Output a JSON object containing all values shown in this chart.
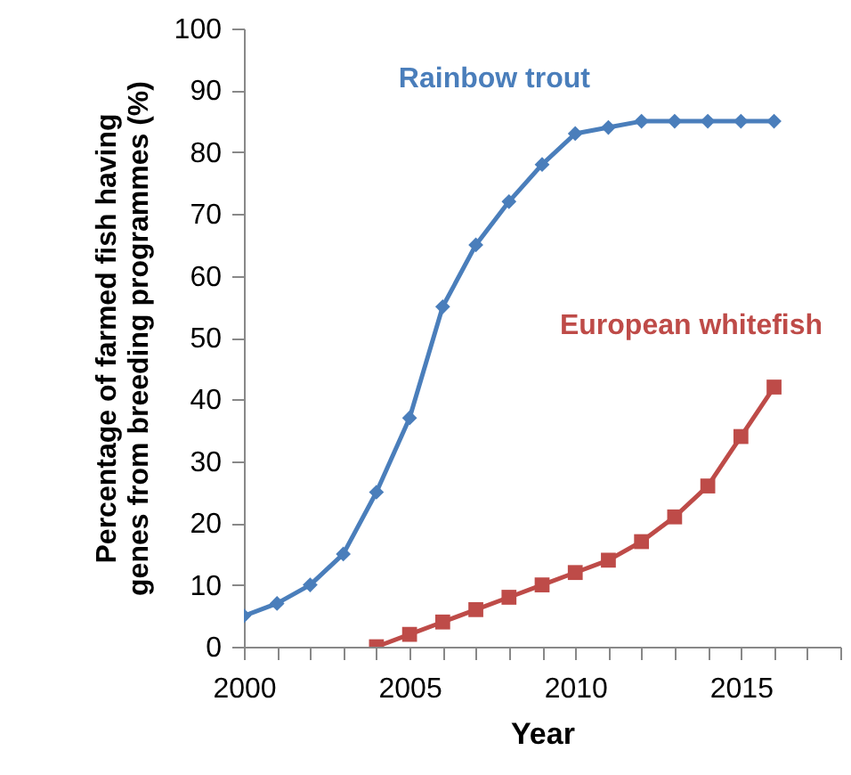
{
  "chart_data": {
    "type": "line",
    "xlabel": "Year",
    "ylabel": "Percentage of farmed fish having genes from breeding programmes (%)",
    "xlim": [
      2000,
      2018
    ],
    "xticks": [
      2000,
      {
        "value": 2001,
        "label": null
      },
      {
        "value": 2002,
        "label": null
      },
      {
        "value": 2003,
        "label": null
      },
      {
        "value": 2004,
        "label": null
      },
      2005,
      {
        "value": 2006,
        "label": null
      },
      {
        "value": 2007,
        "label": null
      },
      {
        "value": 2008,
        "label": null
      },
      {
        "value": 2009,
        "label": null
      },
      2010,
      {
        "value": 2011,
        "label": null
      },
      {
        "value": 2012,
        "label": null
      },
      {
        "value": 2013,
        "label": null
      },
      {
        "value": 2014,
        "label": null
      },
      2015,
      {
        "value": 2016,
        "label": null
      },
      {
        "value": 2017,
        "label": null
      },
      {
        "value": 2018,
        "label": null
      }
    ],
    "ylim": [
      0,
      100
    ],
    "yticks": [
      0,
      10,
      20,
      30,
      40,
      50,
      60,
      70,
      80,
      90,
      100
    ],
    "grid": false,
    "legend": false,
    "series": [
      {
        "name": "Rainbow trout",
        "color": "#4a7ebb",
        "marker": "diamond",
        "x": [
          2000,
          2001,
          2002,
          2003,
          2004,
          2005,
          2006,
          2007,
          2008,
          2009,
          2010,
          2011,
          2012,
          2013,
          2014,
          2015,
          2016
        ],
        "values": [
          5,
          7,
          10,
          15,
          25,
          37,
          55,
          65,
          72,
          78,
          83,
          84,
          85,
          85,
          85,
          85,
          85
        ]
      },
      {
        "name": "European whitefish",
        "color": "#be4b48",
        "marker": "square",
        "x": [
          2004,
          2005,
          2006,
          2007,
          2008,
          2009,
          2010,
          2011,
          2012,
          2013,
          2014,
          2015,
          2016
        ],
        "values": [
          0,
          2,
          4,
          6,
          8,
          10,
          12,
          14,
          17,
          21,
          26,
          34,
          42
        ]
      }
    ]
  }
}
